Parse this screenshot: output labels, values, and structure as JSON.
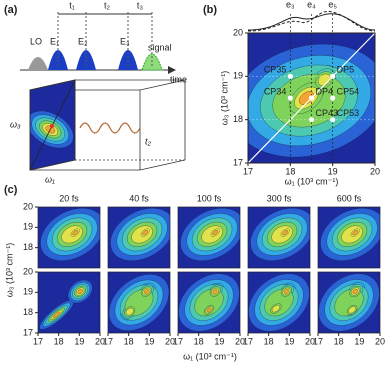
{
  "panel_a": {
    "label": "(a)",
    "pulses": [
      "LO",
      "E₁",
      "E₂",
      "E₃"
    ],
    "signal": "signal",
    "delays": [
      "t₁",
      "t₂",
      "t₃"
    ],
    "time_axis": "time",
    "box_labels": [
      "ω₃",
      "ω₁",
      "t₂"
    ]
  },
  "panel_b": {
    "label": "(b)",
    "xlim": [
      17,
      20
    ],
    "xticks": [
      17,
      18,
      19,
      20
    ],
    "ylim": [
      17,
      20
    ],
    "yticks": [
      17,
      18,
      19,
      20
    ],
    "xlabel": "ω₁ (10³ cm⁻¹)",
    "ylabel": "ω₃ (10³ cm⁻¹)",
    "peaks": [
      {
        "label": "e₃",
        "x": 18.0
      },
      {
        "label": "e₄",
        "x": 18.5
      },
      {
        "label": "e₅",
        "x": 19.0
      }
    ],
    "cross_peaks": [
      {
        "label": "CP35",
        "x": 18.0,
        "y": 19.0
      },
      {
        "label": "DP5",
        "x": 19.0,
        "y": 19.0
      },
      {
        "label": "CP34",
        "x": 18.0,
        "y": 18.5
      },
      {
        "label": "DP4",
        "x": 18.5,
        "y": 18.5
      },
      {
        "label": "CP54",
        "x": 19.0,
        "y": 18.5
      },
      {
        "label": "CP43",
        "x": 18.5,
        "y": 18.0
      },
      {
        "label": "CP53",
        "x": 19.0,
        "y": 18.0
      }
    ]
  },
  "panel_c": {
    "label": "(c)",
    "delays": [
      "20 fs",
      "40 fs",
      "100 fs",
      "300 fs",
      "600 fs"
    ],
    "xlim": [
      17,
      20
    ],
    "xticks": [
      17,
      18,
      19,
      20
    ],
    "ylim": [
      17,
      20
    ],
    "rows": [
      {
        "yticks": [
          18,
          19,
          20
        ]
      },
      {
        "yticks": [
          17,
          18,
          19,
          20
        ]
      }
    ],
    "xlabel": "ω₁ (10³ cm⁻¹)",
    "ylabel": "ω₃ (10³ cm⁻¹)"
  }
}
